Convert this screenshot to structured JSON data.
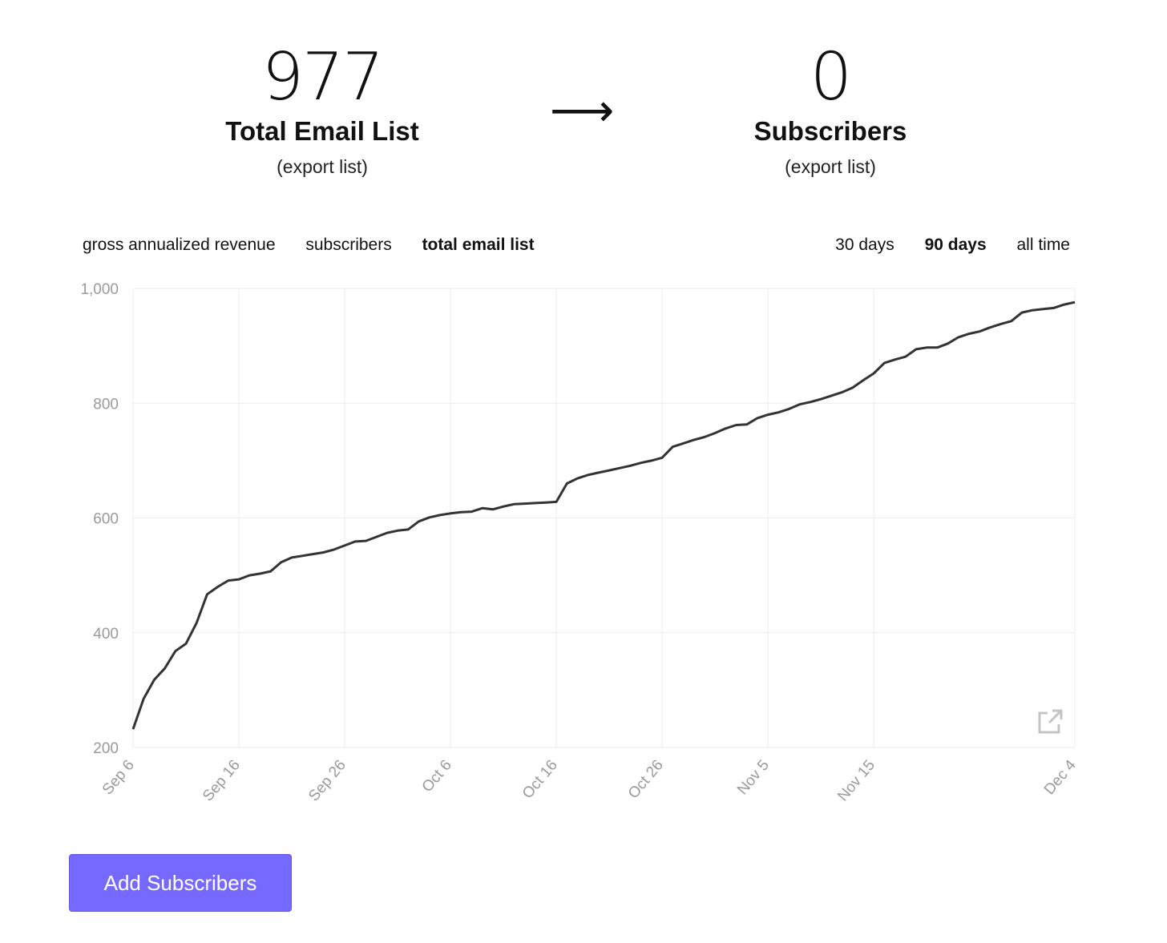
{
  "stats": {
    "total": {
      "value": "977",
      "label": "Total Email List",
      "link": "(export list)"
    },
    "arrow": "⟶",
    "subscribers": {
      "value": "0",
      "label": "Subscribers",
      "link": "(export list)"
    }
  },
  "metric_tabs": [
    {
      "label": "gross annualized revenue",
      "active": false
    },
    {
      "label": "subscribers",
      "active": false
    },
    {
      "label": "total email list",
      "active": true
    }
  ],
  "range_tabs": [
    {
      "label": "30 days",
      "active": false
    },
    {
      "label": "90 days",
      "active": true
    },
    {
      "label": "all time",
      "active": false
    }
  ],
  "chart_data": {
    "type": "line",
    "title": "",
    "xlabel": "",
    "ylabel": "",
    "x_range": [
      "2023-09-06",
      "2023-12-04"
    ],
    "ylim": [
      200,
      1000
    ],
    "y_ticks": [
      {
        "value": 200,
        "label": "200"
      },
      {
        "value": 400,
        "label": "400"
      },
      {
        "value": 600,
        "label": "600"
      },
      {
        "value": 800,
        "label": "800"
      },
      {
        "value": 1000,
        "label": "1,000"
      }
    ],
    "x_ticks": [
      {
        "date": "2023-09-06",
        "label": "Sep 6"
      },
      {
        "date": "2023-09-16",
        "label": "Sep 16"
      },
      {
        "date": "2023-09-26",
        "label": "Sep 26"
      },
      {
        "date": "2023-10-06",
        "label": "Oct 6"
      },
      {
        "date": "2023-10-16",
        "label": "Oct 16"
      },
      {
        "date": "2023-10-26",
        "label": "Oct 26"
      },
      {
        "date": "2023-11-05",
        "label": "Nov 5"
      },
      {
        "date": "2023-11-15",
        "label": "Nov 15"
      },
      {
        "date": "2023-12-04",
        "label": "Dec 4"
      }
    ],
    "grid": true,
    "legend": "none",
    "line_color": "#333333",
    "series": [
      {
        "points": [
          [
            "2023-09-06",
            232
          ],
          [
            "2023-09-07",
            285
          ],
          [
            "2023-09-08",
            318
          ],
          [
            "2023-09-09",
            338
          ],
          [
            "2023-09-10",
            368
          ],
          [
            "2023-09-11",
            381
          ],
          [
            "2023-09-12",
            417
          ],
          [
            "2023-09-13",
            467
          ],
          [
            "2023-09-14",
            480
          ],
          [
            "2023-09-15",
            491
          ],
          [
            "2023-09-16",
            493
          ],
          [
            "2023-09-17",
            500
          ],
          [
            "2023-09-18",
            503
          ],
          [
            "2023-09-19",
            507
          ],
          [
            "2023-09-20",
            523
          ],
          [
            "2023-09-21",
            531
          ],
          [
            "2023-09-22",
            534
          ],
          [
            "2023-09-23",
            537
          ],
          [
            "2023-09-24",
            540
          ],
          [
            "2023-09-25",
            545
          ],
          [
            "2023-09-26",
            552
          ],
          [
            "2023-09-27",
            559
          ],
          [
            "2023-09-28",
            560
          ],
          [
            "2023-09-29",
            567
          ],
          [
            "2023-09-30",
            574
          ],
          [
            "2023-10-01",
            578
          ],
          [
            "2023-10-02",
            580
          ],
          [
            "2023-10-03",
            594
          ],
          [
            "2023-10-04",
            601
          ],
          [
            "2023-10-05",
            605
          ],
          [
            "2023-10-06",
            608
          ],
          [
            "2023-10-07",
            610
          ],
          [
            "2023-10-08",
            611
          ],
          [
            "2023-10-09",
            617
          ],
          [
            "2023-10-10",
            615
          ],
          [
            "2023-10-11",
            620
          ],
          [
            "2023-10-12",
            624
          ],
          [
            "2023-10-13",
            625
          ],
          [
            "2023-10-14",
            626
          ],
          [
            "2023-10-15",
            627
          ],
          [
            "2023-10-16",
            628
          ],
          [
            "2023-10-17",
            660
          ],
          [
            "2023-10-18",
            669
          ],
          [
            "2023-10-19",
            675
          ],
          [
            "2023-10-20",
            679
          ],
          [
            "2023-10-21",
            683
          ],
          [
            "2023-10-22",
            687
          ],
          [
            "2023-10-23",
            691
          ],
          [
            "2023-10-24",
            696
          ],
          [
            "2023-10-25",
            700
          ],
          [
            "2023-10-26",
            705
          ],
          [
            "2023-10-27",
            724
          ],
          [
            "2023-10-28",
            730
          ],
          [
            "2023-10-29",
            736
          ],
          [
            "2023-10-30",
            741
          ],
          [
            "2023-10-31",
            748
          ],
          [
            "2023-11-01",
            756
          ],
          [
            "2023-11-02",
            762
          ],
          [
            "2023-11-03",
            763
          ],
          [
            "2023-11-04",
            774
          ],
          [
            "2023-11-05",
            780
          ],
          [
            "2023-11-06",
            784
          ],
          [
            "2023-11-07",
            790
          ],
          [
            "2023-11-08",
            798
          ],
          [
            "2023-11-09",
            802
          ],
          [
            "2023-11-10",
            807
          ],
          [
            "2023-11-11",
            813
          ],
          [
            "2023-11-12",
            819
          ],
          [
            "2023-11-13",
            827
          ],
          [
            "2023-11-14",
            840
          ],
          [
            "2023-11-15",
            852
          ],
          [
            "2023-11-16",
            870
          ],
          [
            "2023-11-17",
            876
          ],
          [
            "2023-11-18",
            881
          ],
          [
            "2023-11-19",
            894
          ],
          [
            "2023-11-20",
            897
          ],
          [
            "2023-11-21",
            897
          ],
          [
            "2023-11-22",
            904
          ],
          [
            "2023-11-23",
            915
          ],
          [
            "2023-11-24",
            921
          ],
          [
            "2023-11-25",
            925
          ],
          [
            "2023-11-26",
            932
          ],
          [
            "2023-11-27",
            938
          ],
          [
            "2023-11-28",
            943
          ],
          [
            "2023-11-29",
            958
          ],
          [
            "2023-11-30",
            962
          ],
          [
            "2023-12-01",
            964
          ],
          [
            "2023-12-02",
            966
          ],
          [
            "2023-12-03",
            972
          ],
          [
            "2023-12-04",
            976
          ]
        ]
      }
    ]
  },
  "icons": {
    "open_external": "open-external-icon"
  },
  "add_button": {
    "label": "Add Subscribers",
    "color": "#7669ff"
  }
}
